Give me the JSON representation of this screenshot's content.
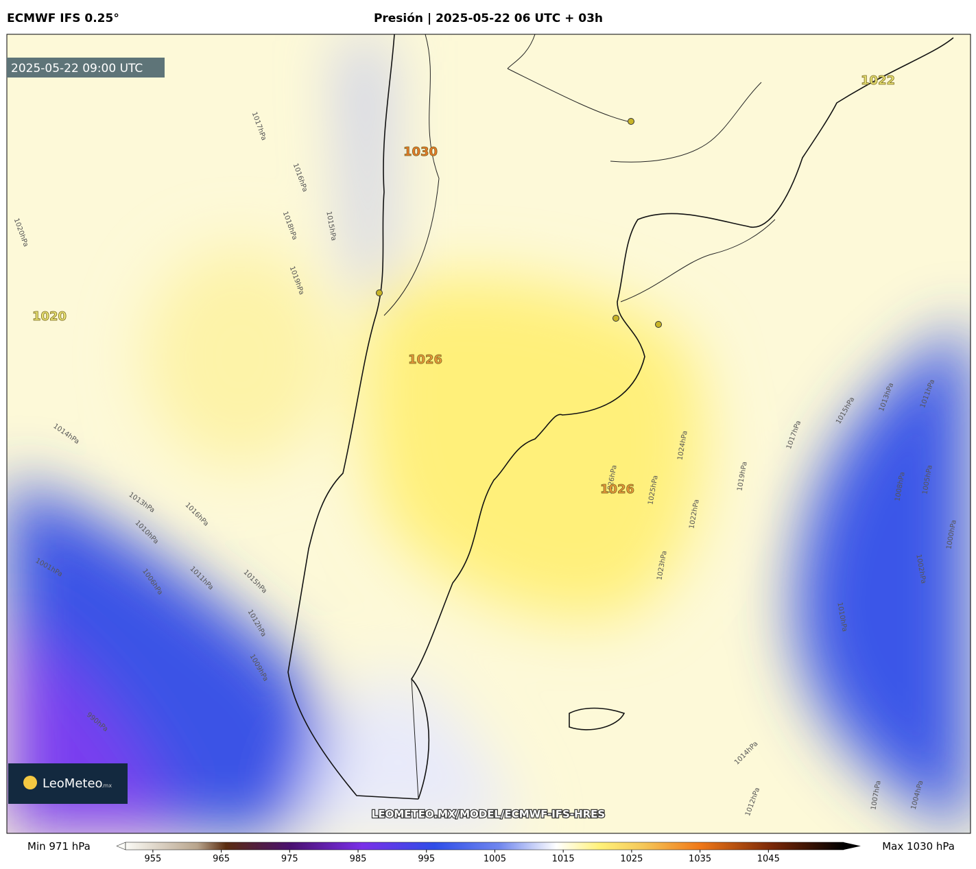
{
  "header": {
    "model": "ECMWF IFS 0.25°",
    "title": "Presión | 2025-05-22 06 UTC + 03h"
  },
  "valid_time": "2025-05-22 09:00 UTC",
  "centers": [
    {
      "label": "1030",
      "color": "#e8782a"
    },
    {
      "label": "1026",
      "color": "#e8963a"
    },
    {
      "label": "1026",
      "color": "#e8963a"
    },
    {
      "label": "1020",
      "color": "#e6e070"
    },
    {
      "label": "1022",
      "color": "#e6e070"
    }
  ],
  "isobar_labels": [
    "1015hPa",
    "1016hPa",
    "1017hPa",
    "1018hPa",
    "1019hPa",
    "1020hPa",
    "1014hPa",
    "1013hPa",
    "1010hPa",
    "1016hPa",
    "1011hPa",
    "1015hPa",
    "1012hPa",
    "1009hPa",
    "1006hPa",
    "1001hPa",
    "990hPa",
    "1026hPa",
    "1025hPa",
    "1024hPa",
    "1022hPa",
    "1023hPa",
    "1019hPa",
    "1017hPa",
    "1015hPa",
    "1013hPa",
    "1011hPa",
    "1008hPa",
    "1005hPa",
    "1010hPa",
    "1014hPa",
    "1012hPa",
    "1007hPa",
    "1004hPa",
    "1002hPa",
    "1000hPa"
  ],
  "watermark": "LEOMETEO.MX/MODEL/ECMWF-IFS-HRES",
  "logo": {
    "name": "LeoMeteo",
    "suffix": ".mx"
  },
  "colorbar": {
    "min_label": "Min 971 hPa",
    "max_label": "Max 1030 hPa",
    "range": [
      951,
      1056
    ],
    "ticks": [
      955,
      965,
      975,
      985,
      995,
      1005,
      1015,
      1025,
      1035,
      1045
    ]
  }
}
